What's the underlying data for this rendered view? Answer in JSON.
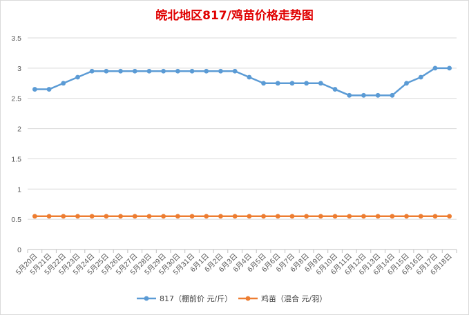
{
  "chart_data": {
    "type": "line",
    "title": "皖北地区817/鸡苗价格走势图",
    "title_color": "#e00000",
    "categories": [
      "5月20日",
      "5月21日",
      "5月22日",
      "5月23日",
      "5月24日",
      "5月25日",
      "5月26日",
      "5月27日",
      "5月28日",
      "5月29日",
      "5月30日",
      "5月31日",
      "6月1日",
      "6月2日",
      "6月3日",
      "6月4日",
      "6月5日",
      "6月6日",
      "6月7日",
      "6月8日",
      "6月9日",
      "6月10日",
      "6月11日",
      "6月12日",
      "6月13日",
      "6月14日",
      "6月15日",
      "6月16日",
      "6月17日",
      "6月18日"
    ],
    "series": [
      {
        "name": "817（棚前价 元/斤）",
        "color": "#5b9bd5",
        "values": [
          2.65,
          2.65,
          2.75,
          2.85,
          2.95,
          2.95,
          2.95,
          2.95,
          2.95,
          2.95,
          2.95,
          2.95,
          2.95,
          2.95,
          2.95,
          2.85,
          2.75,
          2.75,
          2.75,
          2.75,
          2.75,
          2.65,
          2.55,
          2.55,
          2.55,
          2.55,
          2.75,
          2.85,
          3.0,
          3.0
        ]
      },
      {
        "name": "鸡苗（混合 元/羽）",
        "color": "#ed7d31",
        "values": [
          0.55,
          0.55,
          0.55,
          0.55,
          0.55,
          0.55,
          0.55,
          0.55,
          0.55,
          0.55,
          0.55,
          0.55,
          0.55,
          0.55,
          0.55,
          0.55,
          0.55,
          0.55,
          0.55,
          0.55,
          0.55,
          0.55,
          0.55,
          0.55,
          0.55,
          0.55,
          0.55,
          0.55,
          0.55,
          0.55
        ]
      }
    ],
    "yticks": [
      "0",
      "0.5",
      "1",
      "1.5",
      "2",
      "2.5",
      "3",
      "3.5"
    ],
    "ylim": [
      0,
      3.5
    ],
    "grid": true,
    "legend_position": "bottom",
    "xlabel": "",
    "ylabel": ""
  }
}
